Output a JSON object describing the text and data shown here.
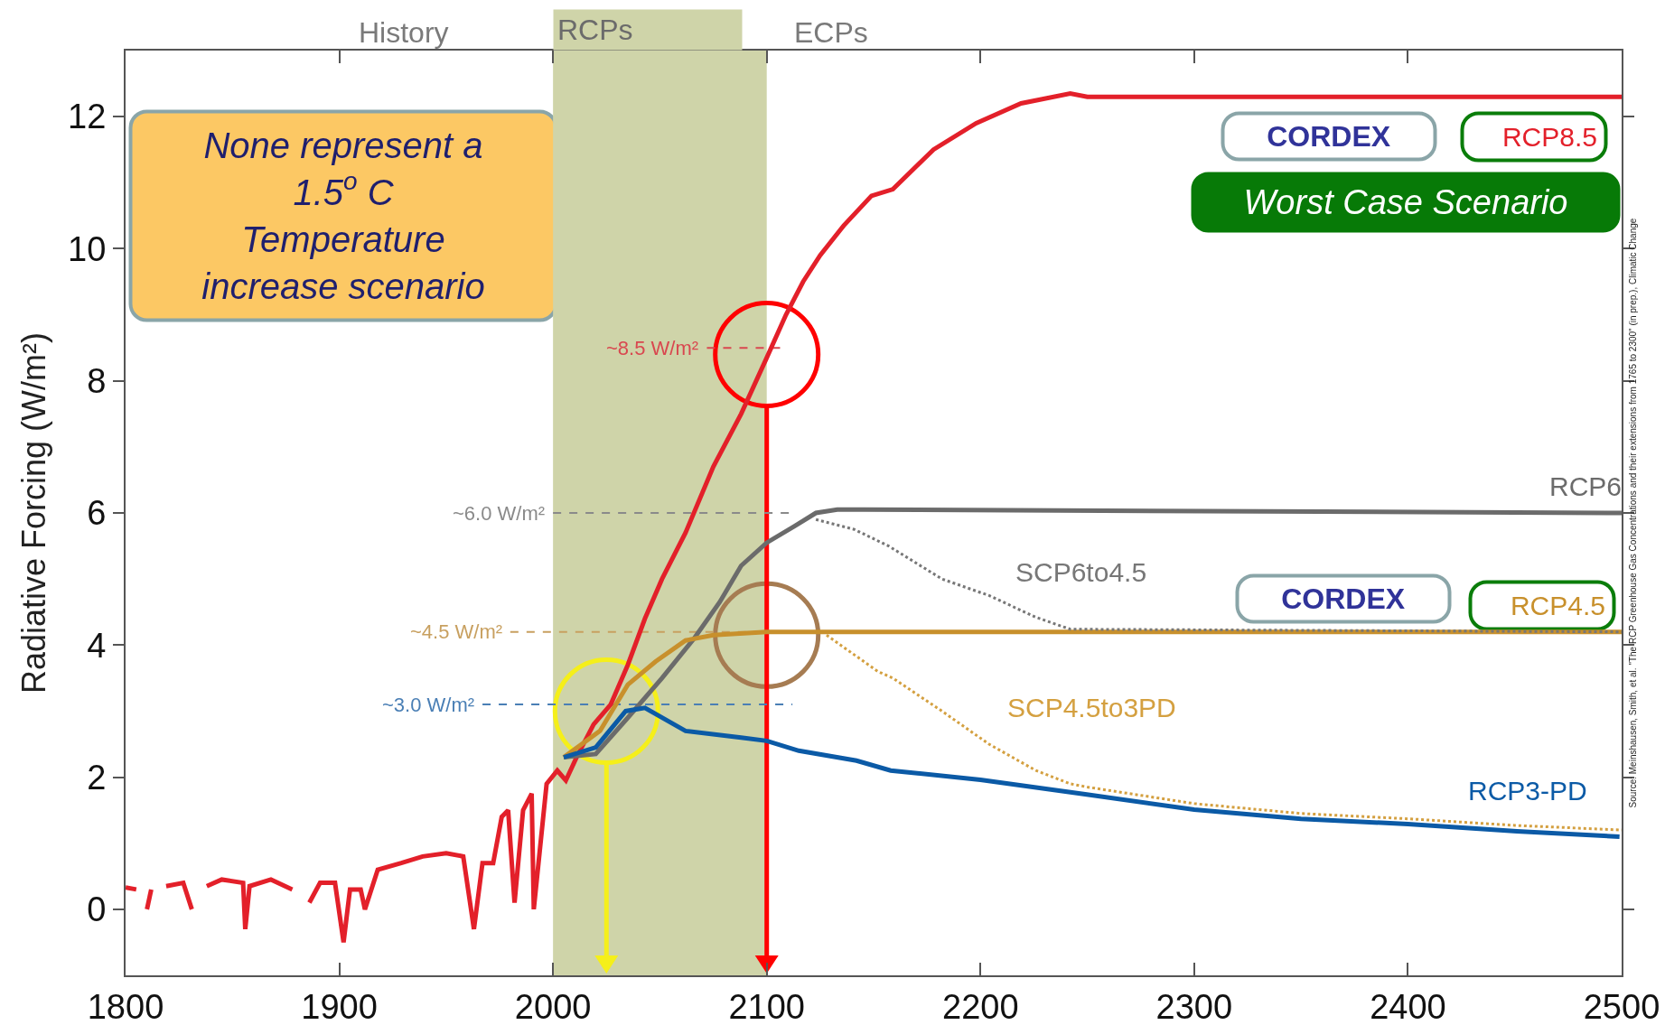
{
  "chart_data": {
    "type": "line",
    "ylabel": "Radiative Forcing (W/m²)",
    "xlim": [
      1800,
      2500
    ],
    "xticks": [
      1800,
      1900,
      2000,
      2100,
      2200,
      2300,
      2400,
      2500
    ],
    "ylim": [
      -1,
      13
    ],
    "yticks": [
      0,
      2,
      4,
      6,
      8,
      10,
      12
    ],
    "grid": false,
    "legend": false,
    "marker": "none",
    "series": [
      {
        "name": "RCP8.5",
        "color": "#e3202a",
        "line_style": "solid",
        "x": [
          1800,
          1805,
          1807,
          1810,
          1812,
          1815,
          1819,
          1827,
          1831,
          1835,
          1838,
          1845,
          1855,
          1856,
          1858,
          1868,
          1878,
          1883,
          1886,
          1891,
          1898,
          1902,
          1905,
          1910,
          1912,
          1918,
          1929,
          1939,
          1950,
          1958,
          1963,
          1967,
          1972,
          1976,
          1979,
          1982,
          1986,
          1990,
          1991,
          1997,
          2002,
          2006,
          2011,
          2019,
          2027,
          2035,
          2043,
          2051,
          2062,
          2075,
          2088,
          2100,
          2109,
          2117,
          2125,
          2136,
          2149,
          2159,
          2178,
          2198,
          2219,
          2242,
          2250,
          2500
        ],
        "values": [
          0.33,
          0.3,
          null,
          0,
          0.3,
          null,
          0.35,
          0.4,
          0,
          null,
          0.35,
          0.45,
          0.4,
          -0.3,
          0.35,
          0.45,
          0.3,
          null,
          0.1,
          0.4,
          0.4,
          -0.5,
          0.3,
          0.3,
          0,
          0.6,
          0.7,
          0.8,
          0.85,
          0.8,
          -0.3,
          0.7,
          0.7,
          1.4,
          1.5,
          0.1,
          1.5,
          1.75,
          0,
          1.9,
          2.1,
          1.95,
          2.3,
          2.8,
          3.1,
          3.7,
          4.4,
          5.0,
          5.7,
          6.7,
          7.5,
          8.35,
          9.0,
          9.5,
          9.9,
          10.35,
          10.8,
          10.9,
          11.5,
          11.9,
          12.2,
          12.35,
          12.3,
          12.3
        ]
      },
      {
        "name": "RCP6",
        "color": "#6b6b6b",
        "line_style": "solid",
        "x": [
          2005,
          2020,
          2035,
          2051,
          2066,
          2078,
          2088,
          2100,
          2113,
          2123,
          2133,
          2145,
          2500
        ],
        "values": [
          2.3,
          2.35,
          2.9,
          3.5,
          4.1,
          4.65,
          5.2,
          5.55,
          5.8,
          6.0,
          6.05,
          6.05,
          6.0
        ]
      },
      {
        "name": "RCP4.5",
        "color": "#c8902c",
        "line_style": "solid",
        "x": [
          2005,
          2022,
          2035,
          2048,
          2062,
          2075,
          2100,
          2500
        ],
        "values": [
          2.3,
          2.7,
          3.4,
          3.75,
          4.07,
          4.15,
          4.2,
          4.2
        ]
      },
      {
        "name": "RCP3-PD",
        "color": "#0b5aa6",
        "line_style": "solid",
        "x": [
          2005,
          2020,
          2034,
          2043,
          2062,
          2088,
          2100,
          2115,
          2142,
          2158,
          2200,
          2249,
          2300,
          2350,
          2400,
          2451,
          2499
        ],
        "values": [
          2.3,
          2.45,
          3.0,
          3.05,
          2.7,
          2.6,
          2.55,
          2.4,
          2.25,
          2.1,
          1.96,
          1.74,
          1.51,
          1.37,
          1.29,
          1.18,
          1.1
        ]
      },
      {
        "name": "SCP6to4.5",
        "color": "#777777",
        "line_style": "dotted",
        "x": [
          2123,
          2141,
          2157,
          2182,
          2204,
          2226,
          2242,
          2500
        ],
        "values": [
          5.9,
          5.75,
          5.5,
          5.0,
          4.75,
          4.42,
          4.24,
          4.2
        ]
      },
      {
        "name": "SCP4.5to3PD",
        "color": "#d4a040",
        "line_style": "dotted",
        "x": [
          2128,
          2152,
          2159,
          2182,
          2204,
          2226,
          2242,
          2250,
          2300,
          2350,
          2400,
          2450,
          2500
        ],
        "values": [
          4.15,
          3.6,
          3.5,
          3.0,
          2.5,
          2.1,
          1.9,
          1.85,
          1.6,
          1.45,
          1.37,
          1.27,
          1.2
        ]
      }
    ],
    "ref_lines": [
      {
        "axis": "y",
        "value": 8.5,
        "label": "~8.5 W/m²",
        "color": "#d9474f",
        "line_style": "dashed"
      },
      {
        "axis": "y",
        "value": 6.0,
        "label": "~6.0 W/m²",
        "color": "#8a8a8a",
        "line_style": "dashed"
      },
      {
        "axis": "y",
        "value": 4.2,
        "label": "~4.5 W/m²",
        "color": "#c8a060",
        "line_style": "dashed"
      },
      {
        "axis": "y",
        "value": 3.1,
        "label": "~3.0 W/m²",
        "color": "#4a7fb5",
        "line_style": "dashed"
      }
    ],
    "bands": [
      {
        "axis": "x",
        "from": 2000,
        "to": 2100,
        "label": "RCPs",
        "color": "#cfd4a9"
      }
    ],
    "annotations": [
      "History",
      "ECPs",
      "None represent a\n1.5$^{o}$ C\nTemperature\nincrease scenario",
      "CORDEX",
      "Worst Case Scenario",
      "CORDEX",
      "Source: Meinshausen, Smith, et al. \"The RCP Greenhouse Gas Concentrations and their extensions from 1765 to 2300\" (in prep.), Climatic Change"
    ]
  }
}
